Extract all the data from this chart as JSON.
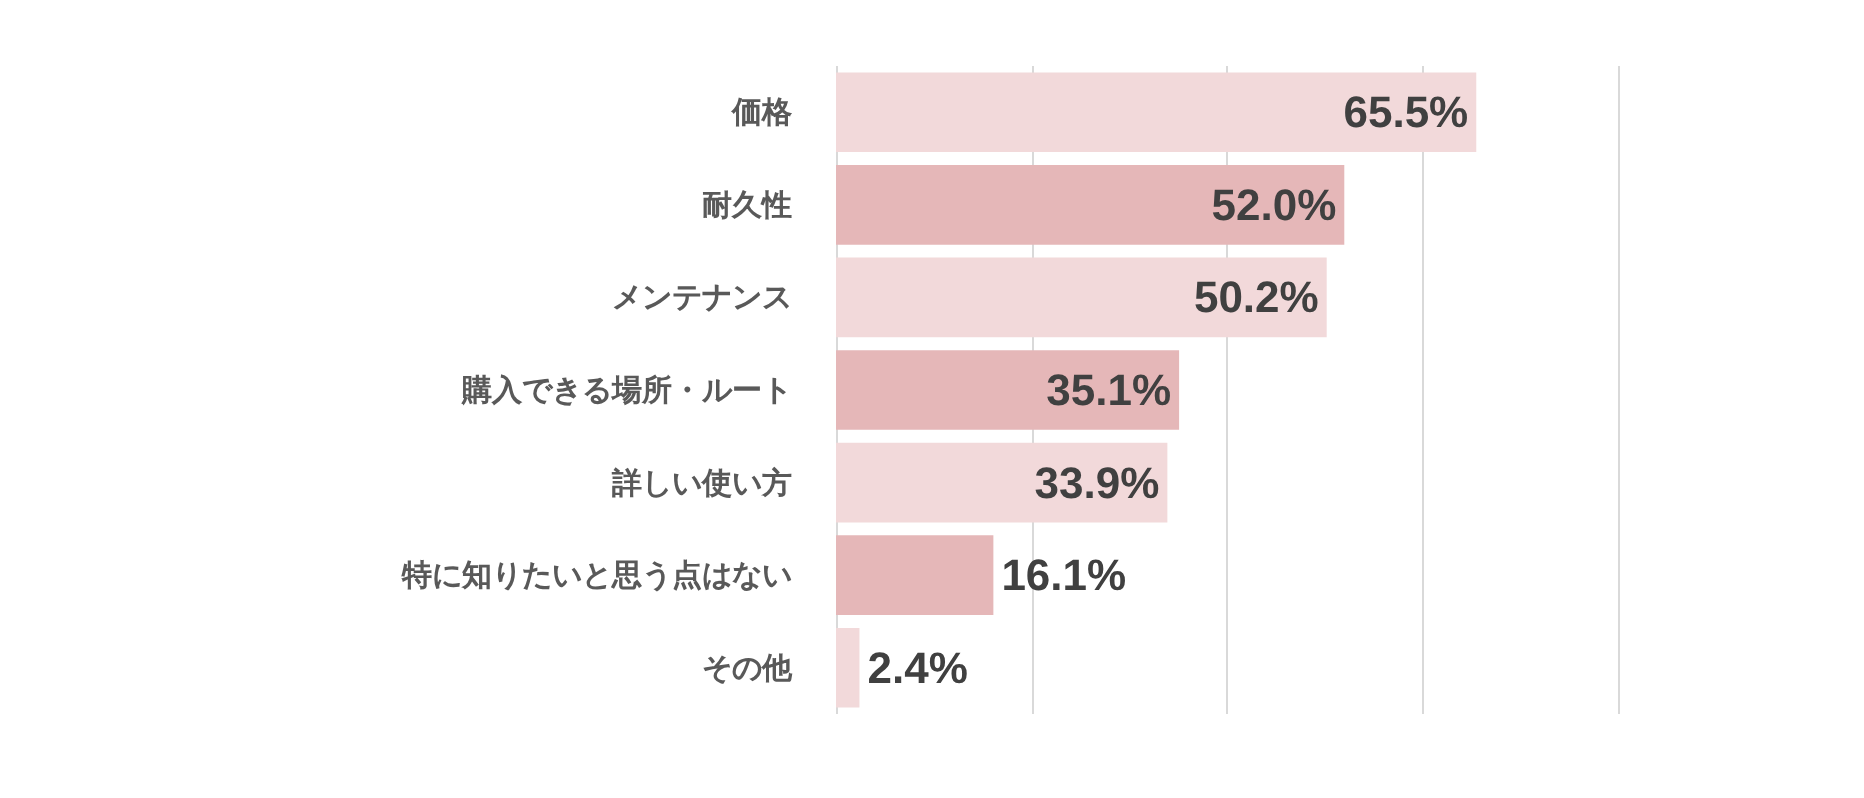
{
  "chart_data": {
    "type": "bar",
    "orientation": "horizontal",
    "categories": [
      "価格",
      "耐久性",
      "メンテナンス",
      "購入できる場所・ルート",
      "詳しい使い方",
      "特に知りたいと思う点はない",
      "その他"
    ],
    "values": [
      65.5,
      52.0,
      50.2,
      35.1,
      33.9,
      16.1,
      2.4
    ],
    "value_labels": [
      "65.5%",
      "52.0%",
      "50.2%",
      "35.1%",
      "33.9%",
      "16.1%",
      "2.4%"
    ],
    "colors": [
      "#f2d9da",
      "#e5b7b8",
      "#f2d9da",
      "#e5b7b8",
      "#f2d9da",
      "#e5b7b8",
      "#f2d9da"
    ],
    "xlim": [
      0,
      80
    ],
    "xticks": [
      {
        "value": 0,
        "label": null
      },
      {
        "value": 20,
        "label": null
      },
      {
        "value": 40,
        "label": null
      },
      {
        "value": 60,
        "label": null
      },
      {
        "value": 80,
        "label": null
      }
    ],
    "grid": "x",
    "tick_labels": "y"
  }
}
